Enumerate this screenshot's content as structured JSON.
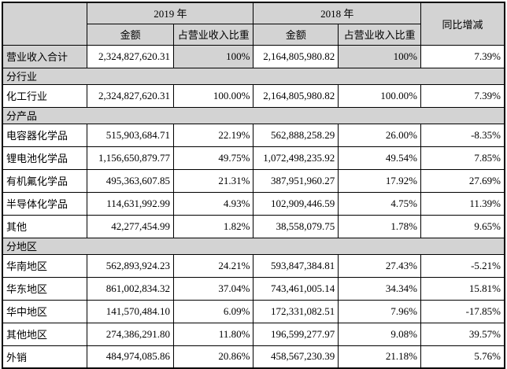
{
  "colors": {
    "cell_gray": "#d3d3d3",
    "cell_white": "#ffffff",
    "border": "#000000",
    "text": "#000000"
  },
  "table": {
    "header": {
      "corner": "",
      "col_2019": "2019 年",
      "col_2018": "2018 年",
      "amount_label_2019": "金额",
      "share_label_2019": "占营业收入比重",
      "amount_label_2018": "金额",
      "share_label_2018": "占营业收入比重",
      "yoy_label": "同比增减"
    },
    "rows": [
      {
        "type": "data",
        "variant": "total",
        "label": "营业收入合计",
        "cells": [
          "2,324,827,620.31",
          "100%",
          "2,164,805,980.82",
          "100%",
          "7.39%"
        ]
      },
      {
        "type": "section",
        "label": "分行业"
      },
      {
        "type": "data",
        "variant": "normal",
        "label": "化工行业",
        "cells": [
          "2,324,827,620.31",
          "100.00%",
          "2,164,805,980.82",
          "100.00%",
          "7.39%"
        ]
      },
      {
        "type": "section",
        "label": "分产品"
      },
      {
        "type": "data",
        "variant": "normal",
        "label": "电容器化学品",
        "cells": [
          "515,903,684.71",
          "22.19%",
          "562,888,258.29",
          "26.00%",
          "-8.35%"
        ]
      },
      {
        "type": "data",
        "variant": "normal",
        "label": "锂电池化学品",
        "cells": [
          "1,156,650,879.77",
          "49.75%",
          "1,072,498,235.92",
          "49.54%",
          "7.85%"
        ]
      },
      {
        "type": "data",
        "variant": "normal",
        "label": "有机氟化学品",
        "cells": [
          "495,363,607.85",
          "21.31%",
          "387,951,960.27",
          "17.92%",
          "27.69%"
        ]
      },
      {
        "type": "data",
        "variant": "normal",
        "label": "半导体化学品",
        "cells": [
          "114,631,992.99",
          "4.93%",
          "102,909,446.59",
          "4.75%",
          "11.39%"
        ]
      },
      {
        "type": "data",
        "variant": "normal",
        "label": "其他",
        "cells": [
          "42,277,454.99",
          "1.82%",
          "38,558,079.75",
          "1.78%",
          "9.65%"
        ]
      },
      {
        "type": "section",
        "label": "分地区"
      },
      {
        "type": "data",
        "variant": "normal",
        "label": "华南地区",
        "cells": [
          "562,893,924.23",
          "24.21%",
          "593,847,384.81",
          "27.43%",
          "-5.21%"
        ]
      },
      {
        "type": "data",
        "variant": "normal",
        "label": "华东地区",
        "cells": [
          "861,002,834.32",
          "37.04%",
          "743,461,005.14",
          "34.34%",
          "15.81%"
        ]
      },
      {
        "type": "data",
        "variant": "normal",
        "label": "华中地区",
        "cells": [
          "141,570,484.10",
          "6.09%",
          "172,331,082.51",
          "7.96%",
          "-17.85%"
        ]
      },
      {
        "type": "data",
        "variant": "normal",
        "label": "其他地区",
        "cells": [
          "274,386,291.80",
          "11.80%",
          "196,599,277.97",
          "9.08%",
          "39.57%"
        ]
      },
      {
        "type": "data",
        "variant": "normal",
        "label": "外销",
        "cells": [
          "484,974,085.86",
          "20.86%",
          "458,567,230.39",
          "21.18%",
          "5.76%"
        ]
      }
    ]
  }
}
